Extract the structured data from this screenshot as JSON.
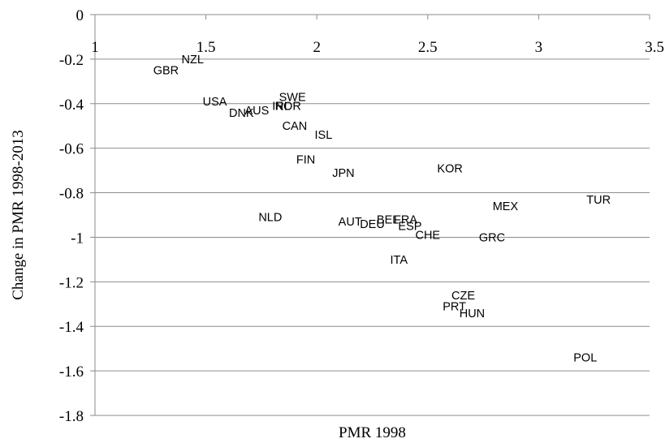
{
  "chart_data": {
    "type": "scatter",
    "title": "",
    "xlabel": "PMR 1998",
    "ylabel": "Change in PMR 1998-2013",
    "xlim": [
      1,
      3.5
    ],
    "ylim": [
      -1.8,
      0
    ],
    "x_ticks": [
      "1",
      "1.5",
      "2",
      "2.5",
      "3",
      "3.5"
    ],
    "x_tick_values": [
      1,
      1.5,
      2,
      2.5,
      3,
      3.5
    ],
    "y_ticks": [
      "0",
      "-0.2",
      "-0.4",
      "-0.6",
      "-0.8",
      "-1",
      "-1.2",
      "-1.4",
      "-1.6",
      "-1.8"
    ],
    "y_tick_values": [
      0,
      -0.2,
      -0.4,
      -0.6,
      -0.8,
      -1,
      -1.2,
      -1.4,
      -1.6,
      -1.8
    ],
    "grid": "horizontal",
    "markers": "text labels only",
    "points": [
      {
        "label": "GBR",
        "x": 1.32,
        "y": -0.25
      },
      {
        "label": "NZL",
        "x": 1.44,
        "y": -0.2
      },
      {
        "label": "USA",
        "x": 1.54,
        "y": -0.39
      },
      {
        "label": "DNK",
        "x": 1.66,
        "y": -0.44
      },
      {
        "label": "AUS",
        "x": 1.73,
        "y": -0.43
      },
      {
        "label": "SWE",
        "x": 1.89,
        "y": -0.37
      },
      {
        "label": "NOR",
        "x": 1.87,
        "y": -0.41
      },
      {
        "label": "IRL",
        "x": 1.84,
        "y": -0.41
      },
      {
        "label": "CAN",
        "x": 1.9,
        "y": -0.5
      },
      {
        "label": "ISL",
        "x": 2.03,
        "y": -0.54
      },
      {
        "label": "FIN",
        "x": 1.95,
        "y": -0.65
      },
      {
        "label": "JPN",
        "x": 2.12,
        "y": -0.71
      },
      {
        "label": "KOR",
        "x": 2.6,
        "y": -0.69
      },
      {
        "label": "MEX",
        "x": 2.85,
        "y": -0.86
      },
      {
        "label": "TUR",
        "x": 3.27,
        "y": -0.83
      },
      {
        "label": "NLD",
        "x": 1.79,
        "y": -0.91
      },
      {
        "label": "AUT",
        "x": 2.15,
        "y": -0.93
      },
      {
        "label": "DEU",
        "x": 2.25,
        "y": -0.94
      },
      {
        "label": "BEL",
        "x": 2.32,
        "y": -0.92
      },
      {
        "label": "FRA",
        "x": 2.4,
        "y": -0.92
      },
      {
        "label": "ESP",
        "x": 2.42,
        "y": -0.95
      },
      {
        "label": "CHE",
        "x": 2.5,
        "y": -0.99
      },
      {
        "label": "GRC",
        "x": 2.79,
        "y": -1.0
      },
      {
        "label": "ITA",
        "x": 2.37,
        "y": -1.1
      },
      {
        "label": "CZE",
        "x": 2.66,
        "y": -1.26
      },
      {
        "label": "PRT",
        "x": 2.62,
        "y": -1.31
      },
      {
        "label": "HUN",
        "x": 2.7,
        "y": -1.34
      },
      {
        "label": "POL",
        "x": 3.21,
        "y": -1.54
      }
    ]
  }
}
